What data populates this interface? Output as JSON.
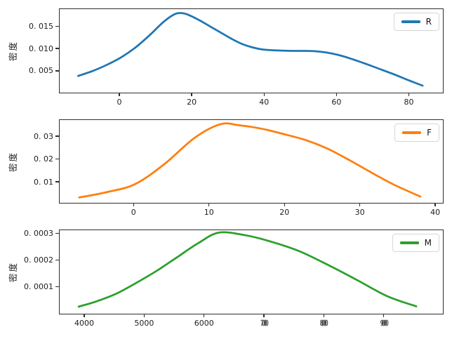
{
  "figure": {
    "background": "#ffffff"
  },
  "chart_data": [
    {
      "type": "line",
      "name": "R",
      "color": "#1f77b4",
      "ylabel": "密度",
      "legend_label": "R",
      "legend_position": "upper right",
      "grid": false,
      "xlim": [
        -16.5,
        89.8
      ],
      "ylim": [
        -0.0002,
        0.0188
      ],
      "xtick_values": [
        0,
        20,
        40,
        60,
        80
      ],
      "xtick_labels": [
        "0",
        "20",
        "40",
        "60",
        "80"
      ],
      "xtick_garbled": [
        false,
        false,
        false,
        false,
        false
      ],
      "ytick_values": [
        0.005,
        0.01,
        0.015
      ],
      "ytick_labels": [
        "0. 005",
        "0. 010",
        "0. 015"
      ],
      "points": [
        [
          -12,
          0.0036
        ],
        [
          -8,
          0.0047
        ],
        [
          -4,
          0.0061
        ],
        [
          0,
          0.0078
        ],
        [
          4,
          0.01
        ],
        [
          8,
          0.0128
        ],
        [
          12,
          0.0159
        ],
        [
          15,
          0.0176
        ],
        [
          17,
          0.0179
        ],
        [
          19,
          0.0175
        ],
        [
          22,
          0.0163
        ],
        [
          25,
          0.0149
        ],
        [
          28,
          0.0135
        ],
        [
          31,
          0.0121
        ],
        [
          34,
          0.0109
        ],
        [
          37,
          0.0101
        ],
        [
          40,
          0.0096
        ],
        [
          44,
          0.0094
        ],
        [
          48,
          0.0093
        ],
        [
          52,
          0.0093
        ],
        [
          55,
          0.0092
        ],
        [
          58,
          0.0089
        ],
        [
          61,
          0.0084
        ],
        [
          64,
          0.0077
        ],
        [
          68,
          0.0066
        ],
        [
          72,
          0.0054
        ],
        [
          76,
          0.0042
        ],
        [
          80,
          0.0029
        ],
        [
          82.5,
          0.0021
        ],
        [
          84.8,
          0.0014
        ]
      ]
    },
    {
      "type": "line",
      "name": "F",
      "color": "#ff7f0e",
      "ylabel": "密度",
      "legend_label": "F",
      "legend_position": "upper right",
      "grid": false,
      "xlim": [
        -9.8,
        41.2
      ],
      "ylim": [
        0.0002,
        0.0371
      ],
      "xtick_values": [
        0,
        10,
        20,
        30,
        40
      ],
      "xtick_labels": [
        "0",
        "10",
        "20",
        "30",
        "40"
      ],
      "xtick_garbled": [
        false,
        false,
        false,
        false,
        false
      ],
      "ytick_values": [
        0.01,
        0.02,
        0.03
      ],
      "ytick_labels": [
        "0. 01",
        "0. 02",
        "0. 03"
      ],
      "points": [
        [
          -7.5,
          0.0026
        ],
        [
          -4,
          0.0048
        ],
        [
          0,
          0.0085
        ],
        [
          4,
          0.0175
        ],
        [
          8,
          0.029
        ],
        [
          11.5,
          0.0352
        ],
        [
          14,
          0.0348
        ],
        [
          17,
          0.0333
        ],
        [
          20,
          0.0309
        ],
        [
          23,
          0.0282
        ],
        [
          26,
          0.0243
        ],
        [
          29,
          0.0191
        ],
        [
          32,
          0.0135
        ],
        [
          35,
          0.0082
        ],
        [
          38.5,
          0.003
        ]
      ]
    },
    {
      "type": "line",
      "name": "M",
      "color": "#2ca02c",
      "ylabel": "密度",
      "legend_label": "M",
      "legend_position": "upper right",
      "grid": false,
      "xlim": [
        3590,
        10010
      ],
      "ylim": [
        -5e-06,
        0.000311
      ],
      "xtick_values": [
        4000,
        5000,
        6000,
        7000,
        8000,
        9000
      ],
      "xtick_labels": [
        "4000",
        "5000",
        "6000",
        "7000",
        "8000",
        "9000"
      ],
      "xtick_garbled": [
        false,
        false,
        false,
        true,
        true,
        true
      ],
      "ytick_values": [
        0.0001,
        0.0002,
        0.0003
      ],
      "ytick_labels": [
        "0. 0001",
        "0. 0002",
        "0. 0003"
      ],
      "points": [
        [
          3870,
          2.2e-05
        ],
        [
          4150,
          4e-05
        ],
        [
          4500,
          7e-05
        ],
        [
          4850,
          0.000112
        ],
        [
          5200,
          0.000158
        ],
        [
          5550,
          0.00021
        ],
        [
          5900,
          0.000262
        ],
        [
          6250,
          0.000302
        ],
        [
          6700,
          0.000292
        ],
        [
          7100,
          0.00027
        ],
        [
          7600,
          0.000233
        ],
        [
          8100,
          0.00018
        ],
        [
          8600,
          0.000122
        ],
        [
          9100,
          6.2e-05
        ],
        [
          9600,
          2.3e-05
        ]
      ]
    }
  ]
}
